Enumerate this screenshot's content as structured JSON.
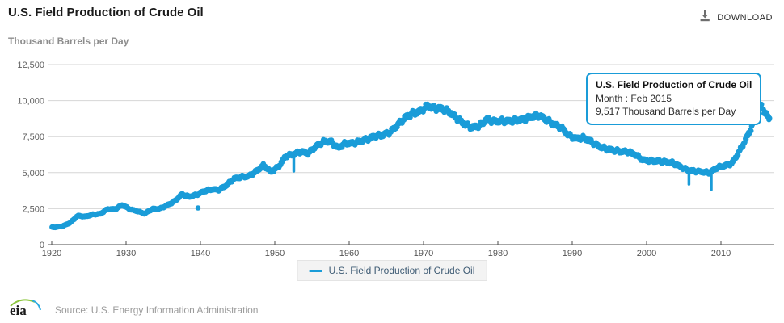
{
  "header": {
    "title": "U.S. Field Production of Crude Oil",
    "download_label": "DOWNLOAD"
  },
  "chart_data": {
    "type": "scatter",
    "title": "U.S. Field Production of Crude Oil",
    "series_name": "U.S. Field Production of Crude Oil",
    "ylabel": "Thousand Barrels per Day",
    "xlabel": "",
    "ylim": [
      0,
      12500
    ],
    "xlim": [
      1919.6,
      2017.2
    ],
    "grid": "horizontal",
    "legend_position": "bottom-center",
    "point_color": "#1a9cd8",
    "y_ticks": [
      {
        "value": 0,
        "label": "0"
      },
      {
        "value": 2500,
        "label": "2,500"
      },
      {
        "value": 5000,
        "label": "5,000"
      },
      {
        "value": 7500,
        "label": "7,500"
      },
      {
        "value": 10000,
        "label": "10,000"
      },
      {
        "value": 12500,
        "label": "12,500"
      }
    ],
    "x_ticks": [
      {
        "value": 1920,
        "label": "1920"
      },
      {
        "value": 1930,
        "label": "1930"
      },
      {
        "value": 1940,
        "label": "1940"
      },
      {
        "value": 1950,
        "label": "1950"
      },
      {
        "value": 1960,
        "label": "1960"
      },
      {
        "value": 1970,
        "label": "1970"
      },
      {
        "value": 1980,
        "label": "1980"
      },
      {
        "value": 1990,
        "label": "1990"
      },
      {
        "value": 2000,
        "label": "2000"
      },
      {
        "value": 2010,
        "label": "2010"
      }
    ],
    "frequency": "monthly",
    "monthly_start": 1920.04,
    "monthly_end": 2016.62,
    "annual_anchors": [
      [
        1920.5,
        1210
      ],
      [
        1921.5,
        1290
      ],
      [
        1922.5,
        1530
      ],
      [
        1923.5,
        2010
      ],
      [
        1924.5,
        1950
      ],
      [
        1925.5,
        2090
      ],
      [
        1926.5,
        2130
      ],
      [
        1927.5,
        2470
      ],
      [
        1928.5,
        2460
      ],
      [
        1929.5,
        2760
      ],
      [
        1930.5,
        2460
      ],
      [
        1931.5,
        2330
      ],
      [
        1932.5,
        2150
      ],
      [
        1933.5,
        2480
      ],
      [
        1934.5,
        2490
      ],
      [
        1935.5,
        2730
      ],
      [
        1936.5,
        3000
      ],
      [
        1937.5,
        3500
      ],
      [
        1938.5,
        3330
      ],
      [
        1939.5,
        3470
      ],
      [
        1940.5,
        3710
      ],
      [
        1941.5,
        3850
      ],
      [
        1942.5,
        3800
      ],
      [
        1943.5,
        4130
      ],
      [
        1944.5,
        4580
      ],
      [
        1945.5,
        4700
      ],
      [
        1946.5,
        4750
      ],
      [
        1947.5,
        5090
      ],
      [
        1948.5,
        5520
      ],
      [
        1949.5,
        5050
      ],
      [
        1950.5,
        5410
      ],
      [
        1951.5,
        6160
      ],
      [
        1952.5,
        6260
      ],
      [
        1953.5,
        6460
      ],
      [
        1954.5,
        6340
      ],
      [
        1955.5,
        6810
      ],
      [
        1956.5,
        7150
      ],
      [
        1957.5,
        7170
      ],
      [
        1958.5,
        6710
      ],
      [
        1959.5,
        7050
      ],
      [
        1960.5,
        7040
      ],
      [
        1961.5,
        7180
      ],
      [
        1962.5,
        7330
      ],
      [
        1963.5,
        7540
      ],
      [
        1964.5,
        7610
      ],
      [
        1965.5,
        7800
      ],
      [
        1966.5,
        8300
      ],
      [
        1967.5,
        8810
      ],
      [
        1968.5,
        9100
      ],
      [
        1969.5,
        9240
      ],
      [
        1970.5,
        9640
      ],
      [
        1971.5,
        9460
      ],
      [
        1972.5,
        9440
      ],
      [
        1973.5,
        9210
      ],
      [
        1974.5,
        8770
      ],
      [
        1975.5,
        8380
      ],
      [
        1976.5,
        8130
      ],
      [
        1977.5,
        8250
      ],
      [
        1978.5,
        8710
      ],
      [
        1979.5,
        8550
      ],
      [
        1980.5,
        8600
      ],
      [
        1981.5,
        8570
      ],
      [
        1982.5,
        8650
      ],
      [
        1983.5,
        8690
      ],
      [
        1984.5,
        8880
      ],
      [
        1985.5,
        8970
      ],
      [
        1986.5,
        8680
      ],
      [
        1987.5,
        8350
      ],
      [
        1988.5,
        8140
      ],
      [
        1989.5,
        7610
      ],
      [
        1990.5,
        7360
      ],
      [
        1991.5,
        7420
      ],
      [
        1992.5,
        7170
      ],
      [
        1993.5,
        6850
      ],
      [
        1994.5,
        6660
      ],
      [
        1995.5,
        6560
      ],
      [
        1996.5,
        6470
      ],
      [
        1997.5,
        6450
      ],
      [
        1998.5,
        6250
      ],
      [
        1999.5,
        5880
      ],
      [
        2000.5,
        5820
      ],
      [
        2001.5,
        5800
      ],
      [
        2002.5,
        5750
      ],
      [
        2003.5,
        5680
      ],
      [
        2004.5,
        5420
      ],
      [
        2005.5,
        5180
      ],
      [
        2006.5,
        5100
      ],
      [
        2007.5,
        5060
      ],
      [
        2008.5,
        5000
      ],
      [
        2009.5,
        5350
      ],
      [
        2010.5,
        5480
      ],
      [
        2011.5,
        5650
      ],
      [
        2012.5,
        6500
      ],
      [
        2013.5,
        7470
      ],
      [
        2014.0,
        8000
      ],
      [
        2014.5,
        8760
      ],
      [
        2015.0,
        9450
      ],
      [
        2015.33,
        9650
      ],
      [
        2015.7,
        9400
      ],
      [
        2016.0,
        9100
      ],
      [
        2016.3,
        8850
      ],
      [
        2016.58,
        8700
      ]
    ],
    "skip_months": [
      1939.67
    ],
    "outliers": [
      {
        "type": "dot",
        "x": 1939.67,
        "value": 2550
      },
      {
        "type": "bar",
        "x": 1952.55,
        "from": 6400,
        "to": 5100
      },
      {
        "type": "bar",
        "x": 2005.7,
        "from": 5150,
        "to": 4200
      },
      {
        "type": "bar",
        "x": 2008.7,
        "from": 5000,
        "to": 3810
      }
    ],
    "tooltip": {
      "title": "U.S. Field Production of Crude Oil",
      "period_line": "Month : Feb 2015",
      "value_line": "9,517 Thousand Barrels per Day",
      "highlighted_value": 9517
    }
  },
  "legend": {
    "label": "U.S. Field Production of Crude Oil"
  },
  "footer": {
    "logo_text": "eia",
    "source": "Source: U.S. Energy Information Administration"
  }
}
